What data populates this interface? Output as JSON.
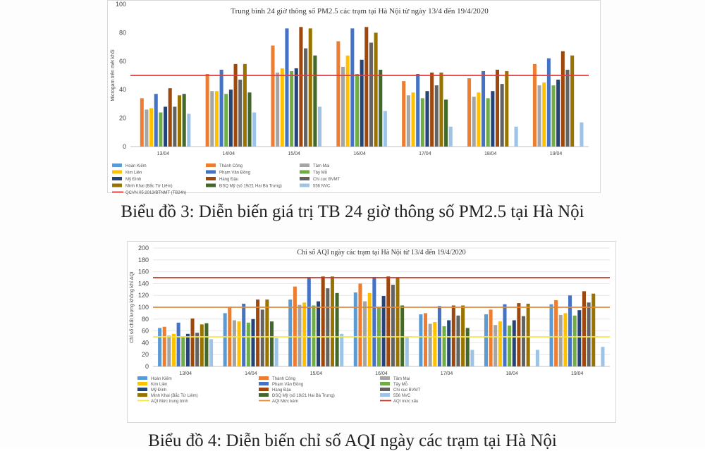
{
  "chart_data": [
    {
      "type": "bar",
      "title": "Trung bình 24 giờ thông số PM2.5 các trạm tại Hà Nội từ ngày 13/4 đến 19/4/2020",
      "ylabel": "Microgam trên mét khối",
      "ylim": [
        0,
        100
      ],
      "yticks": [
        "0",
        "20",
        "40",
        "60",
        "80",
        "100"
      ],
      "categories": [
        "13/04",
        "14/04",
        "15/04",
        "16/04",
        "17/04",
        "18/04",
        "19/04"
      ],
      "series": [
        {
          "name": "Hoàn Kiếm",
          "color": "#5b9bd5",
          "values": [
            null,
            null,
            null,
            null,
            null,
            null,
            null
          ]
        },
        {
          "name": "Thành Công",
          "color": "#ed7d31",
          "values": [
            34,
            51,
            71,
            74,
            46,
            48,
            58
          ]
        },
        {
          "name": "Tâm Mai",
          "color": "#a5a5a5",
          "values": [
            26,
            39,
            52,
            56,
            36,
            35,
            43
          ]
        },
        {
          "name": "Kim Liên",
          "color": "#ffc000",
          "values": [
            27,
            39,
            55,
            64,
            38,
            38,
            45
          ]
        },
        {
          "name": "Phạm Văn Đồng",
          "color": "#4472c4",
          "values": [
            37,
            54,
            83,
            83,
            51,
            53,
            62
          ]
        },
        {
          "name": "Tây Mỗ",
          "color": "#70ad47",
          "values": [
            24,
            37,
            53,
            51,
            34,
            34,
            43
          ]
        },
        {
          "name": "Mỹ Đình",
          "color": "#264478",
          "values": [
            28,
            40,
            55,
            61,
            39,
            39,
            47
          ]
        },
        {
          "name": "Hàng Đậu",
          "color": "#9e480e",
          "values": [
            41,
            58,
            84,
            84,
            52,
            54,
            67
          ]
        },
        {
          "name": "Chi cục BVMT",
          "color": "#636363",
          "values": [
            28,
            47,
            69,
            73,
            43,
            44,
            54
          ]
        },
        {
          "name": "Minh Khai (Bắc Từ Liêm)",
          "color": "#997300",
          "values": [
            36,
            58,
            83,
            80,
            52,
            53,
            64
          ]
        },
        {
          "name": "ĐSQ Mỹ (số 19/21 Hai Bà Trưng)",
          "color": "#43682b",
          "values": [
            37,
            38,
            64,
            54,
            33,
            null,
            null
          ]
        },
        {
          "name": "556 NVC",
          "color": "#9dc3e6",
          "values": [
            23,
            24,
            28,
            25,
            14,
            14,
            17
          ]
        }
      ],
      "reference_lines": [
        {
          "name": "QCVN 05:2013/BTNMT (TB24h)",
          "value": 50,
          "color": "#e03c3c"
        }
      ]
    },
    {
      "type": "bar",
      "title": "Chỉ số AQI ngày các trạm tại Hà Nội từ 13/4 đến 19/4/2020",
      "ylabel": "Chỉ số chất lượng không khí AQI",
      "ylim": [
        0,
        200
      ],
      "yticks": [
        "0",
        "20",
        "40",
        "60",
        "80",
        "100",
        "120",
        "140",
        "160",
        "180",
        "200"
      ],
      "categories": [
        "13/04",
        "14/04",
        "15/04",
        "16/04",
        "17/04",
        "18/04",
        "19/04"
      ],
      "series": [
        {
          "name": "Hoàn Kiếm",
          "color": "#5b9bd5",
          "values": [
            65,
            90,
            113,
            125,
            88,
            88,
            105
          ]
        },
        {
          "name": "Thành Công",
          "color": "#ed7d31",
          "values": [
            67,
            101,
            135,
            140,
            90,
            96,
            112
          ]
        },
        {
          "name": "Tâm Mai",
          "color": "#a5a5a5",
          "values": [
            52,
            78,
            104,
            110,
            72,
            70,
            87
          ]
        },
        {
          "name": "Kim Liên",
          "color": "#ffc000",
          "values": [
            55,
            76,
            108,
            124,
            75,
            76,
            90
          ]
        },
        {
          "name": "Phạm Văn Đồng",
          "color": "#4472c4",
          "values": [
            74,
            106,
            151,
            151,
            102,
            105,
            120
          ]
        },
        {
          "name": "Tây Mỗ",
          "color": "#70ad47",
          "values": [
            51,
            74,
            103,
            100,
            68,
            69,
            86
          ]
        },
        {
          "name": "Mỹ Đình",
          "color": "#264478",
          "values": [
            55,
            80,
            110,
            119,
            78,
            78,
            95
          ]
        },
        {
          "name": "Hàng Đậu",
          "color": "#9e480e",
          "values": [
            81,
            113,
            152,
            152,
            103,
            107,
            127
          ]
        },
        {
          "name": "Chi cục BVMT",
          "color": "#636363",
          "values": [
            57,
            96,
            132,
            138,
            86,
            85,
            108
          ]
        },
        {
          "name": "Minh Khai (Bắc Từ Liêm)",
          "color": "#997300",
          "values": [
            71,
            113,
            152,
            150,
            103,
            106,
            123
          ]
        },
        {
          "name": "ĐSQ Mỹ (số 19/21 Hai Bà Trưng)",
          "color": "#43682b",
          "values": [
            73,
            76,
            124,
            103,
            65,
            null,
            null
          ]
        },
        {
          "name": "556 NVC",
          "color": "#9dc3e6",
          "values": [
            46,
            48,
            55,
            50,
            28,
            28,
            33
          ]
        }
      ],
      "reference_lines": [
        {
          "name": "AQI Mức trung bình",
          "value": 50,
          "color": "#f4e840"
        },
        {
          "name": "AQI Mức kém",
          "value": 100,
          "color": "#e08a3c"
        },
        {
          "name": "AQI mức xấu",
          "value": 150,
          "color": "#c0392b"
        }
      ]
    }
  ],
  "captions": {
    "chart1": "Biểu đồ 3: Diễn biến giá trị TB 24 giờ thông số PM2.5 tại Hà Nội",
    "chart2": "Biểu đồ 4: Diễn biến chỉ số AQI ngày các trạm tại Hà Nội"
  }
}
